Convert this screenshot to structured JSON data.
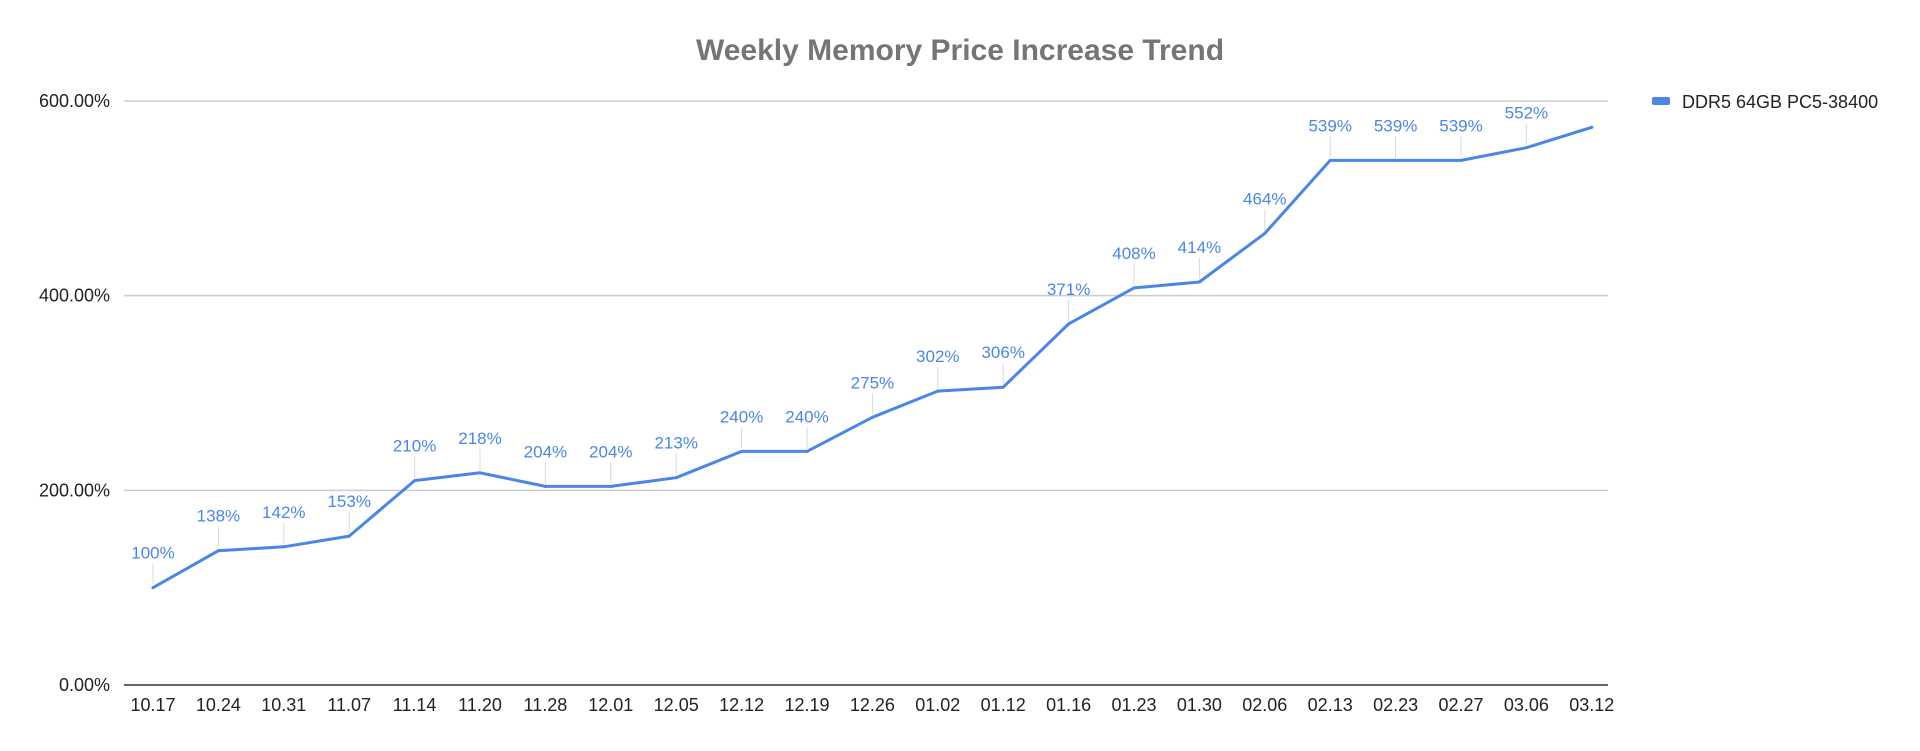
{
  "chart_data": {
    "type": "line",
    "title": "Weekly Memory Price Increase Trend",
    "xlabel": "",
    "ylabel": "",
    "ylim": [
      0,
      600
    ],
    "y_ticks": [
      0,
      200,
      400,
      600
    ],
    "y_tick_labels": [
      "0.00%",
      "200.00%",
      "400.00%",
      "600.00%"
    ],
    "grid": true,
    "legend_position": "top-right",
    "categories": [
      "10.17",
      "10.24",
      "10.31",
      "11.07",
      "11.14",
      "11.20",
      "11.28",
      "12.01",
      "12.05",
      "12.12",
      "12.19",
      "12.26",
      "01.02",
      "01.12",
      "01.16",
      "01.23",
      "01.30",
      "02.06",
      "02.13",
      "02.23",
      "02.27",
      "03.06",
      "03.12"
    ],
    "series": [
      {
        "name": "DDR5 64GB PC5-38400",
        "color": "#4a86e8",
        "values": [
          100,
          138,
          142,
          153,
          210,
          218,
          204,
          204,
          213,
          240,
          240,
          275,
          302,
          306,
          371,
          408,
          414,
          464,
          539,
          539,
          539,
          552,
          573
        ],
        "data_labels": [
          "100%",
          "138%",
          "142%",
          "153%",
          "210%",
          "218%",
          "204%",
          "204%",
          "213%",
          "240%",
          "240%",
          "275%",
          "302%",
          "306%",
          "371%",
          "408%",
          "414%",
          "464%",
          "539%",
          "539%",
          "539%",
          "552%",
          ""
        ]
      }
    ]
  }
}
